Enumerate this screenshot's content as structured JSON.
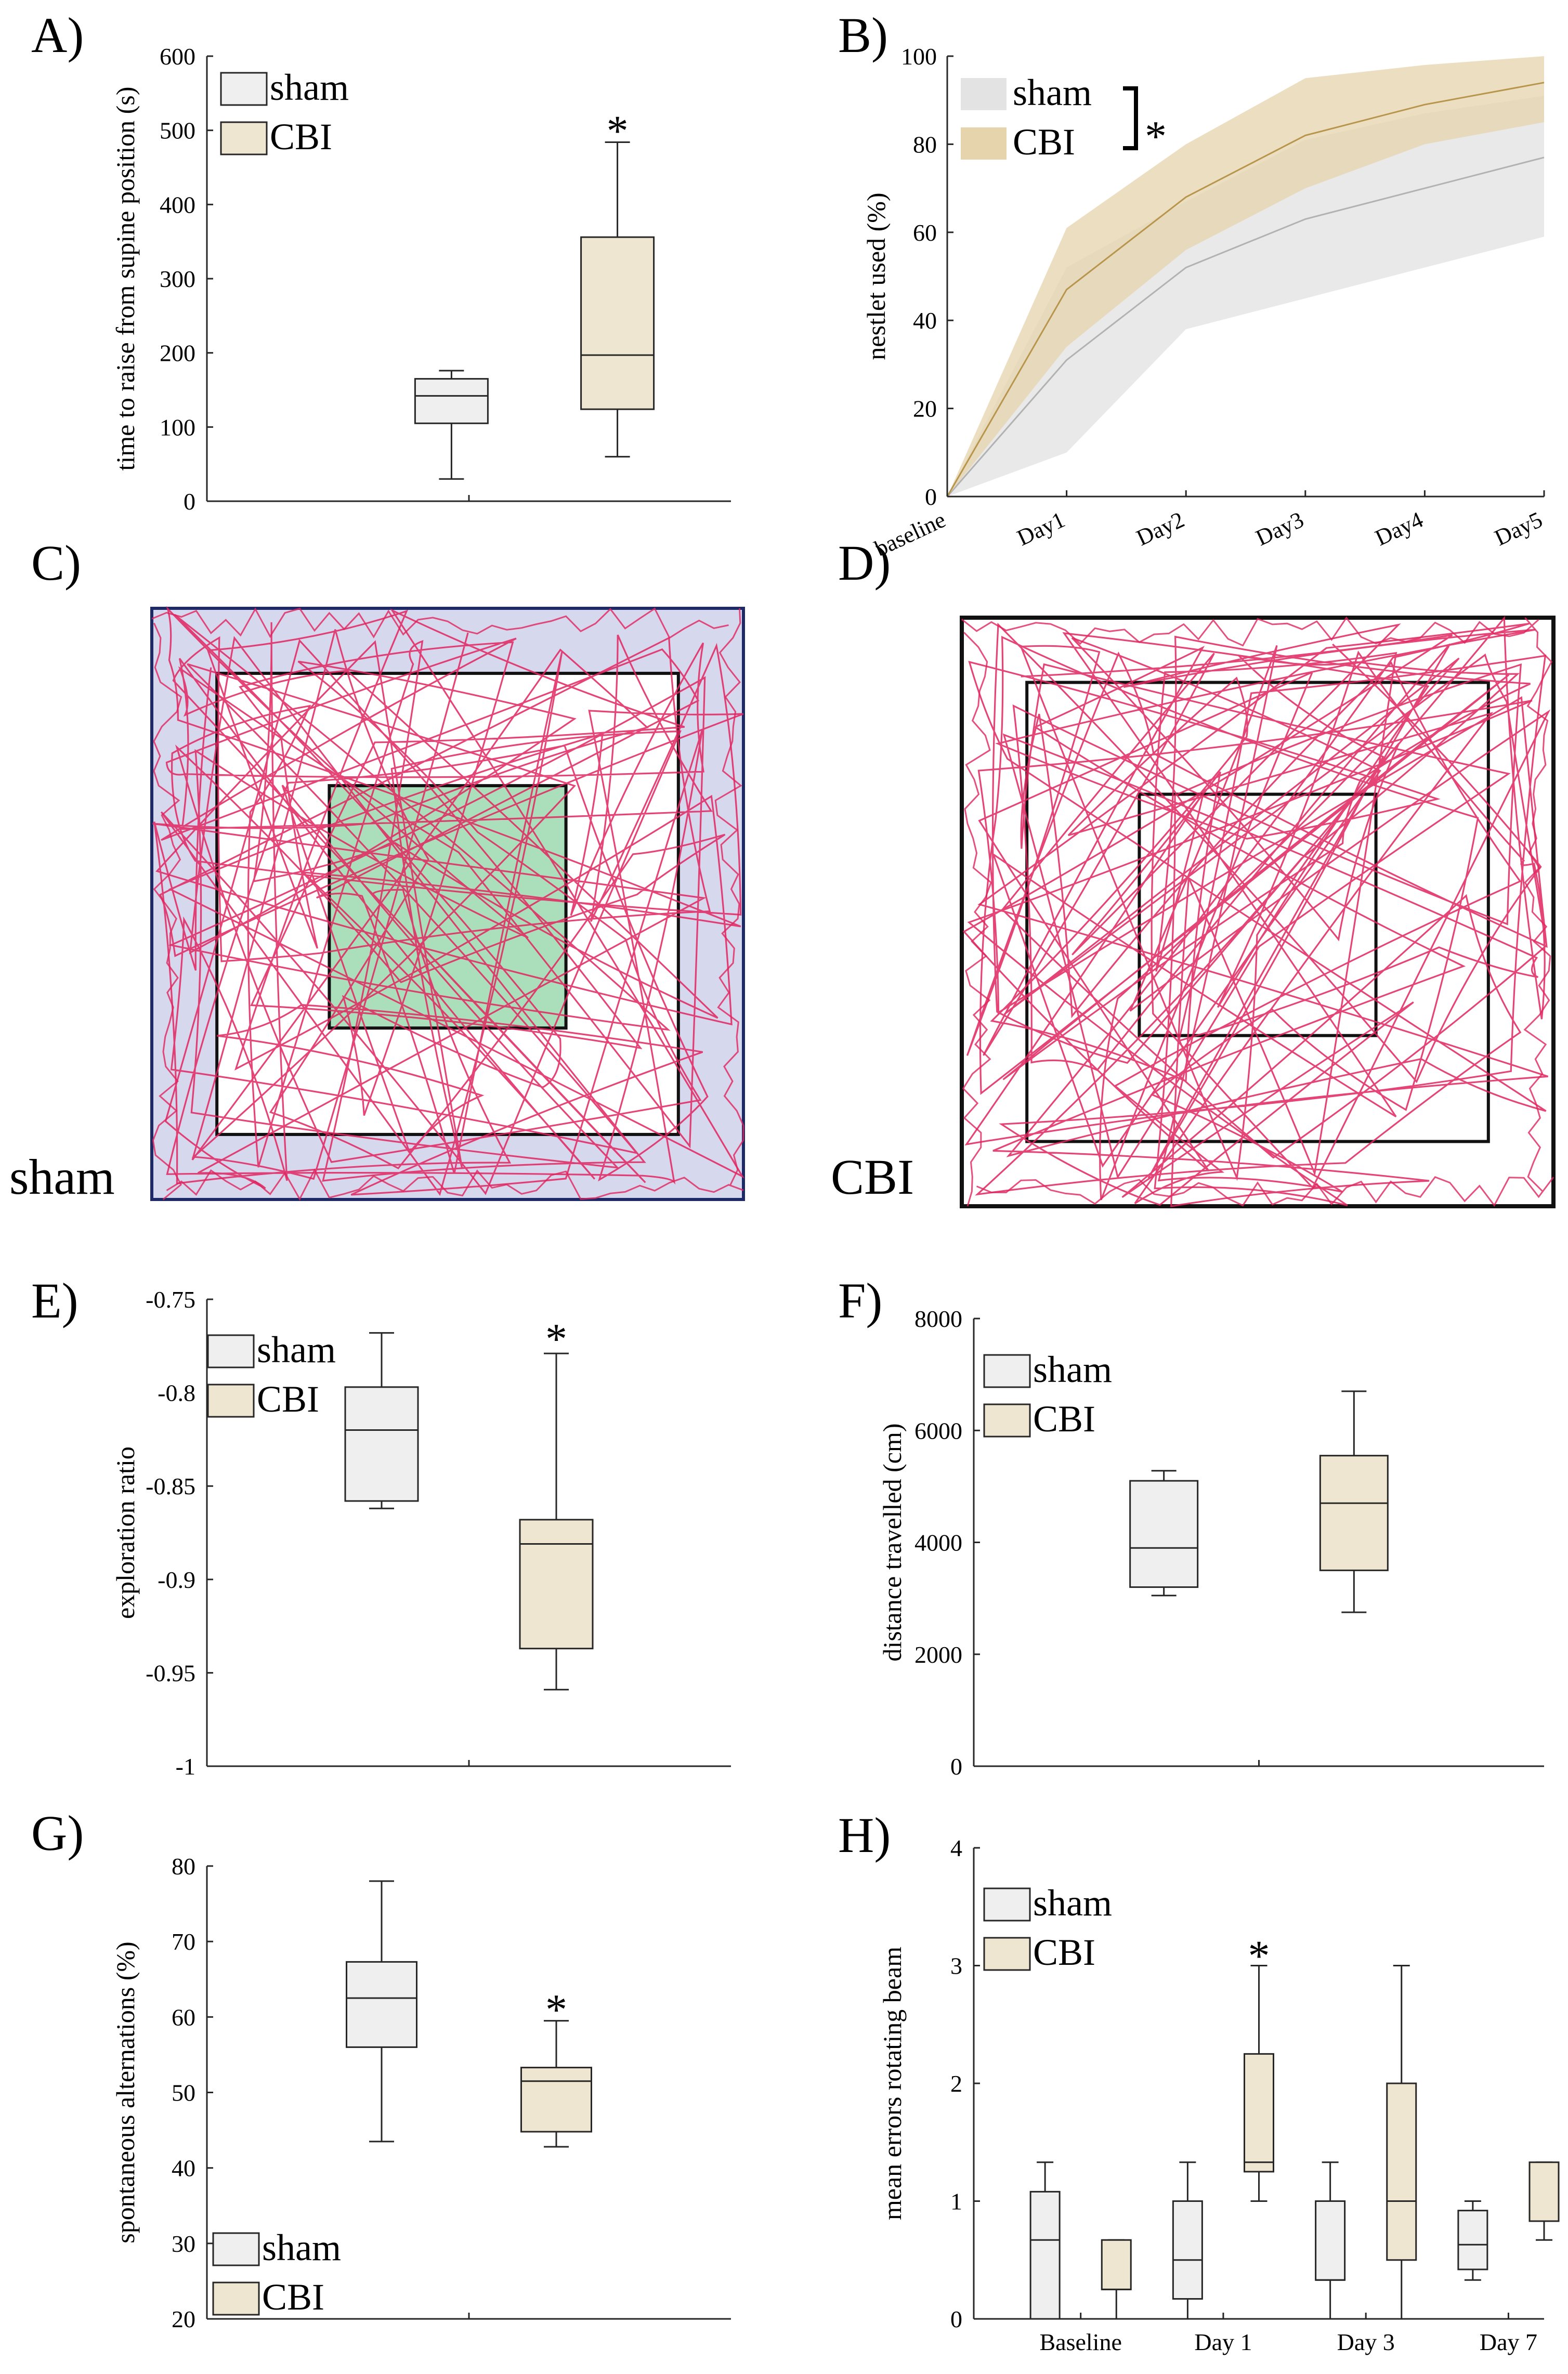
{
  "colors": {
    "sham_fill": "#efefef",
    "cbi_fill": "#efe6d2",
    "axis": "#262626",
    "sham_band": "#e3e3e3",
    "cbi_band": "#e6d4ac",
    "sham_line": "#b2b2b2",
    "cbi_line": "#b8954c",
    "track": "#e0245e",
    "outer_zone": "#c8cbe7",
    "center_zone": "#8fd4a6"
  },
  "legend": {
    "sham": "sham",
    "cbi": "CBI"
  },
  "chart_data": [
    {
      "id": "A",
      "panel_label": "A)",
      "type": "box",
      "ylabel": "time to raise from supine position (s)",
      "ylim": [
        0,
        600
      ],
      "yticks": [
        0,
        100,
        200,
        300,
        400,
        500,
        600
      ],
      "ytick_labels": [
        "0",
        "100",
        "200",
        "300",
        "400",
        "500",
        "600"
      ],
      "xlim": [
        0,
        3
      ],
      "groups": [
        {
          "name": "sham",
          "x": 1.4,
          "whisker_low": 30,
          "q1": 105,
          "median": 142,
          "q3": 165,
          "whisker_high": 176
        },
        {
          "name": "CBI",
          "x": 2.35,
          "whisker_low": 60,
          "q1": 124,
          "median": 197,
          "q3": 356,
          "whisker_high": 484
        }
      ],
      "annotations": [
        {
          "text": "*",
          "x": 2.35,
          "y": 515
        }
      ]
    },
    {
      "id": "B",
      "panel_label": "B)",
      "type": "area",
      "ylabel": "nestlet used (%)",
      "ylim": [
        0,
        100
      ],
      "yticks": [
        0,
        20,
        40,
        60,
        80,
        100
      ],
      "ytick_labels": [
        "0",
        "20",
        "40",
        "60",
        "80",
        "100"
      ],
      "categories": [
        "baseline",
        "Day1",
        "Day2",
        "Day3",
        "Day4",
        "Day5"
      ],
      "series": [
        {
          "name": "sham",
          "mean": [
            0,
            31,
            52,
            63,
            70,
            77
          ],
          "lower": [
            0,
            10,
            38,
            45,
            52,
            59
          ],
          "upper": [
            0,
            52,
            67,
            81,
            87,
            91
          ]
        },
        {
          "name": "CBI",
          "mean": [
            0,
            47,
            68,
            82,
            89,
            94
          ],
          "lower": [
            0,
            34,
            56,
            70,
            80,
            85
          ],
          "upper": [
            0,
            61,
            80,
            95,
            98,
            100
          ]
        }
      ],
      "significance": "*"
    },
    {
      "id": "E",
      "panel_label": "E)",
      "type": "box",
      "ylabel": "exploration ratio",
      "ylim": [
        -1,
        -0.75
      ],
      "yticks": [
        -1,
        -0.95,
        -0.9,
        -0.85,
        -0.8,
        -0.75
      ],
      "ytick_labels": [
        "-1",
        "-0.95",
        "-0.9",
        "-0.85",
        "-0.8",
        "-0.75"
      ],
      "xlim": [
        0,
        3
      ],
      "groups": [
        {
          "name": "sham",
          "x": 1.0,
          "whisker_low": -0.862,
          "q1": -0.858,
          "median": -0.82,
          "q3": -0.797,
          "whisker_high": -0.768
        },
        {
          "name": "CBI",
          "x": 2.0,
          "whisker_low": -0.959,
          "q1": -0.937,
          "median": -0.881,
          "q3": -0.868,
          "whisker_high": -0.779
        }
      ],
      "annotations": [
        {
          "text": "*",
          "x": 2.0,
          "y": -0.765
        }
      ]
    },
    {
      "id": "F",
      "panel_label": "F)",
      "type": "box",
      "ylabel": "distance travelled (cm)",
      "ylim": [
        0,
        8000
      ],
      "yticks": [
        0,
        2000,
        4000,
        6000,
        8000
      ],
      "ytick_labels": [
        "0",
        "2000",
        "4000",
        "6000",
        "8000"
      ],
      "xlim": [
        0,
        3
      ],
      "groups": [
        {
          "name": "sham",
          "x": 1.0,
          "whisker_low": 3050,
          "q1": 3200,
          "median": 3900,
          "q3": 5100,
          "whisker_high": 5280
        },
        {
          "name": "CBI",
          "x": 2.0,
          "whisker_low": 2750,
          "q1": 3500,
          "median": 4700,
          "q3": 5550,
          "whisker_high": 6700
        }
      ],
      "annotations": []
    },
    {
      "id": "G",
      "panel_label": "G)",
      "type": "box",
      "ylabel": "spontaneous alternations (%)",
      "ylim": [
        20,
        80
      ],
      "yticks": [
        20,
        30,
        40,
        50,
        60,
        70,
        80
      ],
      "ytick_labels": [
        "20",
        "30",
        "40",
        "50",
        "60",
        "70",
        "80"
      ],
      "xlim": [
        0,
        3
      ],
      "groups": [
        {
          "name": "sham",
          "x": 1.0,
          "whisker_low": 43.5,
          "q1": 56,
          "median": 62.5,
          "q3": 67.3,
          "whisker_high": 78
        },
        {
          "name": "CBI",
          "x": 2.0,
          "whisker_low": 42.8,
          "q1": 44.8,
          "median": 51.5,
          "q3": 53.3,
          "whisker_high": 59.5
        }
      ],
      "annotations": [
        {
          "text": "*",
          "x": 2.0,
          "y": 62.5
        }
      ]
    },
    {
      "id": "H",
      "panel_label": "H)",
      "type": "box",
      "ylabel": "mean errors rotating beam",
      "ylim": [
        0,
        4
      ],
      "yticks": [
        0,
        1,
        2,
        3,
        4
      ],
      "ytick_labels": [
        "0",
        "1",
        "2",
        "3",
        "4"
      ],
      "xlim": [
        0,
        8
      ],
      "categories": [
        "Baseline",
        "Day 1",
        "Day 3",
        "Day 7"
      ],
      "category_x": [
        1.5,
        3.5,
        5.5,
        7.5
      ],
      "groups": [
        {
          "name": "sham",
          "x": 1,
          "whisker_low": 0,
          "q1": 0,
          "median": 0.67,
          "q3": 1.08,
          "whisker_high": 1.33
        },
        {
          "name": "CBI",
          "x": 2,
          "whisker_low": 0,
          "q1": 0.25,
          "median": 0.25,
          "q3": 0.67,
          "whisker_high": 0.67
        },
        {
          "name": "sham",
          "x": 3,
          "whisker_low": 0,
          "q1": 0.17,
          "median": 0.5,
          "q3": 1.0,
          "whisker_high": 1.33
        },
        {
          "name": "CBI",
          "x": 4,
          "whisker_low": 1.0,
          "q1": 1.25,
          "median": 1.33,
          "q3": 2.25,
          "whisker_high": 3.0
        },
        {
          "name": "sham",
          "x": 5,
          "whisker_low": 0,
          "q1": 0.33,
          "median": 0.33,
          "q3": 1.0,
          "whisker_high": 1.33
        },
        {
          "name": "CBI",
          "x": 6,
          "whisker_low": 0,
          "q1": 0.5,
          "median": 1.0,
          "q3": 2.0,
          "whisker_high": 3.0
        },
        {
          "name": "sham",
          "x": 7,
          "whisker_low": 0.33,
          "q1": 0.42,
          "median": 0.63,
          "q3": 0.92,
          "whisker_high": 1.0
        },
        {
          "name": "CBI",
          "x": 8,
          "whisker_low": 0.67,
          "q1": 0.83,
          "median": 0.83,
          "q3": 1.33,
          "whisker_high": 1.33
        }
      ],
      "annotations": [
        {
          "text": "*",
          "x": 4,
          "y": 3.18
        }
      ]
    },
    {
      "id": "C",
      "panel_label": "C)",
      "type": "trajectory",
      "group_label": "sham",
      "zones_highlighted": true
    },
    {
      "id": "D",
      "panel_label": "D)",
      "type": "trajectory",
      "group_label": "CBI",
      "zones_highlighted": false
    }
  ]
}
